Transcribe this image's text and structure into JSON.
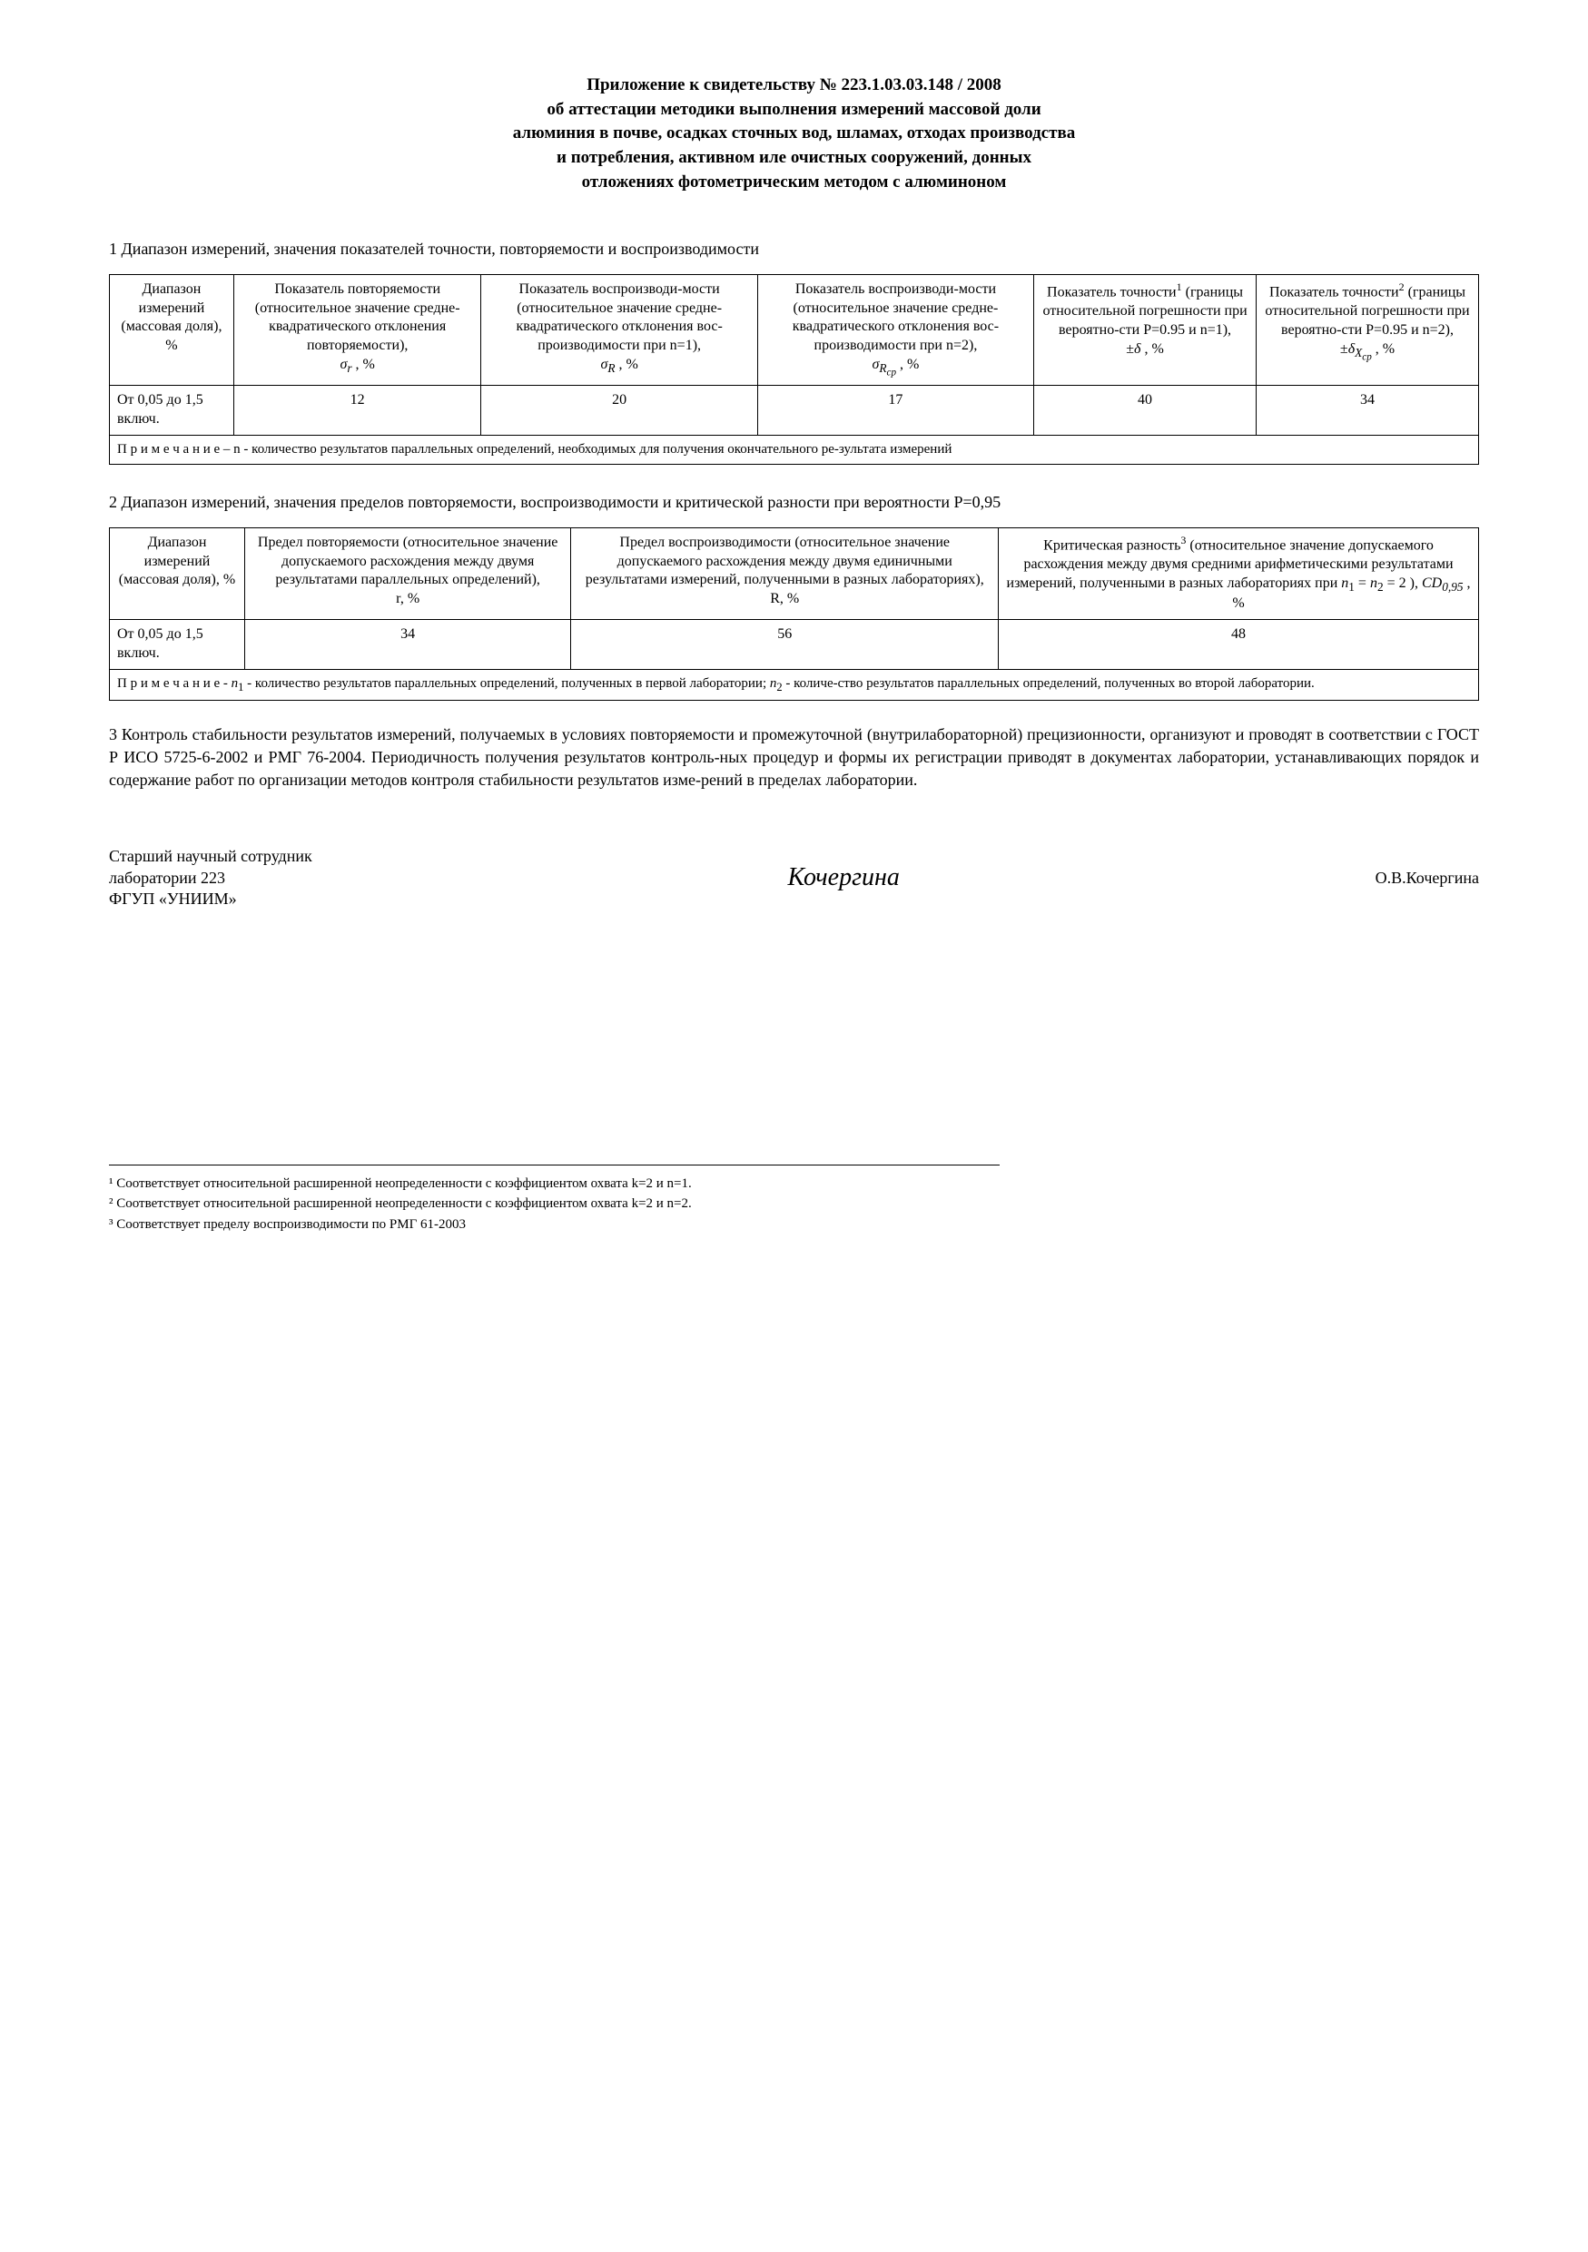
{
  "header": {
    "line1": "Приложение к свидетельству №  223.1.03.03.148 / 2008",
    "line2": "об аттестации методики выполнения измерений массовой доли",
    "line3": "алюминия в почве, осадках сточных вод, шламах, отходах производства",
    "line4": "и потребления, активном иле очистных сооружений, донных",
    "line5": "отложениях фотометрическим методом с алюминоном"
  },
  "section1": {
    "title": "1 Диапазон измерений, значения показателей точности, повторяемости и воспроизводимости",
    "table": {
      "headers": [
        "Диапазон измерений (массовая доля), %",
        "Показатель повторяемости (относительное значение средне-квадратического отклонения повторяемости), σr , %",
        "Показатель воспроизводи-мости (относительное значение средне-квадратического отклонения вос-производимости при n=1), σR , %",
        "Показатель воспроизводи-мости (относительное значение средне-квадратического отклонения вос-производимости при n=2), σRсер , %",
        "Показатель точности¹ (границы относительной погрешности при вероятно-сти Р=0.95 и n=1), ±δ , %",
        "Показатель точности² (границы относительной погрешности при вероятно-сти Р=0.95 и n=2), ±δXср , %"
      ],
      "row": [
        "От 0,05 до 1,5 включ.",
        "12",
        "20",
        "17",
        "40",
        "34"
      ],
      "note": "П р и м е ч а н и е – n - количество результатов параллельных определений, необходимых для получения окончательного ре-зультата измерений"
    }
  },
  "section2": {
    "title": "2 Диапазон измерений, значения пределов повторяемости, воспроизводимости и критической разности при вероятности Р=0,95",
    "table": {
      "headers": [
        "Диапазон измерений (массовая доля), %",
        "Предел повторяемости (относительное значение допускаемого расхождения между двумя результатами параллельных определений), r, %",
        "Предел воспроизводимости (относительное значение допускаемого расхождения между двумя единичными результатами измерений, полученными в разных лабораториях), R, %",
        "Критическая разность³ (относительное значение допускаемого расхождения между двумя средними арифметическими результатами измерений, полученными в разных лабораториях при n₁ = n₂ = 2 ), CD0,95 , %"
      ],
      "row": [
        "От 0,05 до 1,5 включ.",
        "34",
        "56",
        "48"
      ],
      "note": "П р и м е ч а н и е - n₁ - количество результатов параллельных определений, полученных в первой лаборатории; n₂ - количе-ство результатов параллельных определений, полученных во второй лаборатории."
    }
  },
  "section3": {
    "text": "3 Контроль стабильности результатов измерений, получаемых в условиях повторяемости и промежуточной (внутрилабораторной) прецизионности, организуют и проводят в соответствии с ГОСТ Р ИСО 5725-6-2002  и РМГ 76-2004.  Периодичность получения результатов контроль-ных процедур и формы их регистрации приводят в документах лаборатории, устанавливающих порядок и содержание работ по организации методов контроля стабильности результатов изме-рений в пределах лаборатории."
  },
  "signature": {
    "position_line1": "Старший научный сотрудник",
    "position_line2": "лаборатории 223",
    "position_line3": "ФГУП «УНИИМ»",
    "handwritten": "Кочергина",
    "name": "О.В.Кочергина"
  },
  "footnotes": {
    "fn1": "¹ Соответствует относительной расширенной неопределенности с коэффициентом охвата k=2 и n=1.",
    "fn2": "² Соответствует относительной расширенной неопределенности с коэффициентом охвата k=2 и n=2.",
    "fn3": "³ Соответствует пределу воспроизводимости по РМГ 61-2003"
  }
}
